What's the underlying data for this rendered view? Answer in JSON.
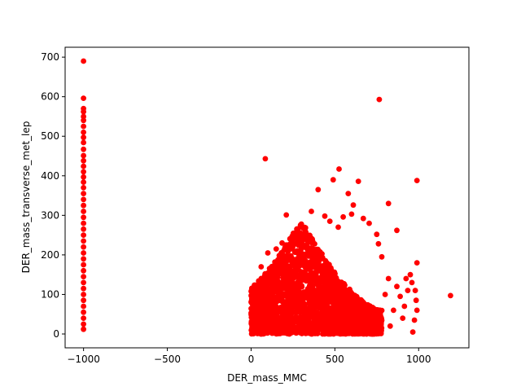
{
  "chart_data": {
    "type": "scatter",
    "title": "",
    "xlabel": "DER_mass_MMC",
    "ylabel": "DER_mass_transverse_met_lep",
    "xlim": [
      -1110,
      1300
    ],
    "ylim": [
      -35,
      725
    ],
    "xticks": [
      -1000,
      -500,
      0,
      500,
      1000
    ],
    "yticks": [
      0,
      100,
      200,
      300,
      400,
      500,
      600,
      700
    ],
    "xtick_labels": [
      "−1000",
      "−500",
      "0",
      "500",
      "1000"
    ],
    "ytick_labels": [
      "0",
      "100",
      "200",
      "300",
      "400",
      "500",
      "600",
      "700"
    ],
    "grid": false,
    "legend": "none",
    "marker_color": "#ff0000",
    "series": [
      {
        "values_note": "",
        "points": [
          [
            -1000,
            690
          ],
          [
            -1000,
            596
          ],
          [
            -1000,
            570
          ],
          [
            -1000,
            562
          ],
          [
            -1000,
            550
          ],
          [
            -1000,
            540
          ],
          [
            -1000,
            525
          ],
          [
            -1000,
            510
          ],
          [
            -1000,
            497
          ],
          [
            -1000,
            484
          ],
          [
            -1000,
            467
          ],
          [
            -1000,
            451
          ],
          [
            -1000,
            438
          ],
          [
            -1000,
            424
          ],
          [
            -1000,
            410
          ],
          [
            -1000,
            397
          ],
          [
            -1000,
            384
          ],
          [
            -1000,
            370
          ],
          [
            -1000,
            355
          ],
          [
            -1000,
            340
          ],
          [
            -1000,
            325
          ],
          [
            -1000,
            310
          ],
          [
            -1000,
            295
          ],
          [
            -1000,
            280
          ],
          [
            -1000,
            265
          ],
          [
            -1000,
            250
          ],
          [
            -1000,
            235
          ],
          [
            -1000,
            220
          ],
          [
            -1000,
            205
          ],
          [
            -1000,
            190
          ],
          [
            -1000,
            175
          ],
          [
            -1000,
            160
          ],
          [
            -1000,
            145
          ],
          [
            -1000,
            130
          ],
          [
            -1000,
            115
          ],
          [
            -1000,
            100
          ],
          [
            -1000,
            85
          ],
          [
            -1000,
            70
          ],
          [
            -1000,
            55
          ],
          [
            -1000,
            40
          ],
          [
            -1000,
            25
          ],
          [
            -1000,
            12
          ],
          [
            765,
            593
          ],
          [
            85,
            443
          ],
          [
            525,
            417
          ],
          [
            490,
            390
          ],
          [
            640,
            386
          ],
          [
            990,
            388
          ],
          [
            1190,
            97
          ],
          [
            820,
            330
          ],
          [
            870,
            262
          ],
          [
            750,
            252
          ],
          [
            760,
            228
          ],
          [
            780,
            195
          ],
          [
            400,
            365
          ],
          [
            580,
            355
          ],
          [
            210,
            301
          ],
          [
            550,
            296
          ],
          [
            610,
            326
          ],
          [
            600,
            303
          ],
          [
            670,
            292
          ],
          [
            705,
            280
          ],
          [
            360,
            310
          ],
          [
            440,
            298
          ],
          [
            470,
            285
          ],
          [
            520,
            270
          ],
          [
            990,
            180
          ],
          [
            960,
            130
          ],
          [
            950,
            150
          ],
          [
            935,
            110
          ],
          [
            915,
            70
          ],
          [
            905,
            40
          ],
          [
            890,
            95
          ],
          [
            870,
            120
          ],
          [
            850,
            60
          ],
          [
            830,
            20
          ],
          [
            820,
            140
          ],
          [
            800,
            100
          ],
          [
            985,
            85
          ],
          [
            975,
            35
          ],
          [
            990,
            60
          ],
          [
            980,
            110
          ],
          [
            965,
            5
          ],
          [
            925,
            140
          ],
          [
            100,
            205
          ],
          [
            150,
            215
          ],
          [
            185,
            230
          ],
          [
            60,
            170
          ],
          [
            70,
            140
          ],
          [
            40,
            120
          ]
        ]
      }
    ],
    "cluster": {
      "note": "dense region of points",
      "x_range": [
        0,
        780
      ],
      "y_base": 0,
      "peak_x": 300,
      "peak_y": 290
    }
  }
}
